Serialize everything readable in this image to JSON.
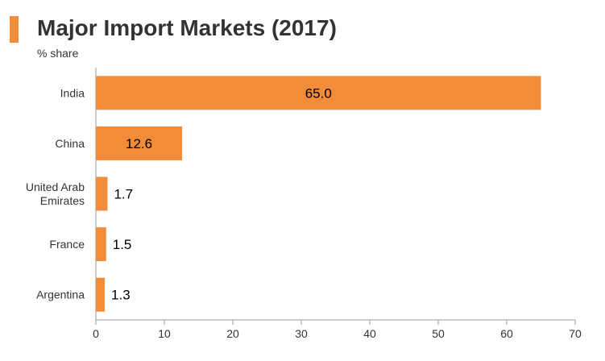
{
  "chart_data": {
    "type": "bar",
    "orientation": "horizontal",
    "title": "Major Import Markets (2017)",
    "subtitle": "% share",
    "categories": [
      "India",
      "China",
      "United Arab Emirates",
      "France",
      "Argentina"
    ],
    "category_label_lines": [
      [
        "India"
      ],
      [
        "China"
      ],
      [
        "United Arab",
        "Emirates"
      ],
      [
        "France"
      ],
      [
        "Argentina"
      ]
    ],
    "values": [
      65.0,
      12.6,
      1.7,
      1.5,
      1.3
    ],
    "data_labels": [
      "65.0",
      "12.6",
      "1.7",
      "1.5",
      "1.3"
    ],
    "xlim": [
      0,
      70
    ],
    "xticks": [
      0,
      10,
      20,
      30,
      40,
      50,
      60,
      70
    ],
    "grid": false,
    "bar_color": "#f28c38"
  }
}
